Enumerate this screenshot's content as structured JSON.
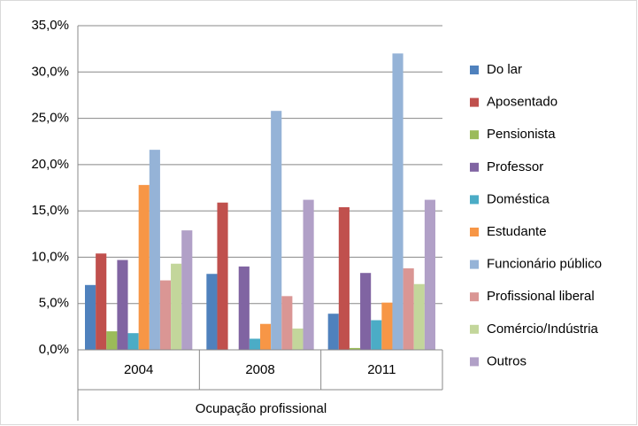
{
  "chart_data": {
    "type": "bar",
    "categories": [
      "2004",
      "2008",
      "2011"
    ],
    "xlabel": "Ocupação profissional",
    "ylim": [
      0,
      35
    ],
    "yticks": [
      {
        "value": 0,
        "label": "0,0%"
      },
      {
        "value": 5,
        "label": "5,0%"
      },
      {
        "value": 10,
        "label": "10,0%"
      },
      {
        "value": 15,
        "label": "15,0%"
      },
      {
        "value": 20,
        "label": "20,0%"
      },
      {
        "value": 25,
        "label": "25,0%"
      },
      {
        "value": 30,
        "label": "30,0%"
      },
      {
        "value": 35,
        "label": "35,0%"
      }
    ],
    "grid": true,
    "legend": "right",
    "series": [
      {
        "name": "Do lar",
        "color": "#4F81BD",
        "values": [
          7.0,
          8.2,
          3.9
        ]
      },
      {
        "name": "Aposentado",
        "color": "#C0504D",
        "values": [
          10.4,
          15.9,
          15.4
        ]
      },
      {
        "name": "Pensionista",
        "color": "#9BBB59",
        "values": [
          2.0,
          0,
          0.2
        ]
      },
      {
        "name": "Professor",
        "color": "#8064A2",
        "values": [
          9.7,
          9.0,
          8.3
        ]
      },
      {
        "name": "Doméstica",
        "color": "#4BACC6",
        "values": [
          1.8,
          1.2,
          3.2
        ]
      },
      {
        "name": "Estudante",
        "color": "#F79646",
        "values": [
          17.8,
          2.8,
          5.1
        ]
      },
      {
        "name": "Funcionário público",
        "color": "#95B3D7",
        "values": [
          21.6,
          25.8,
          32.0
        ]
      },
      {
        "name": "Profissional liberal",
        "color": "#DA9694",
        "values": [
          7.5,
          5.8,
          8.8
        ]
      },
      {
        "name": "Comércio/Indústria",
        "color": "#C3D69B",
        "values": [
          9.3,
          2.3,
          7.1
        ]
      },
      {
        "name": "Outros",
        "color": "#B1A0C7",
        "values": [
          12.9,
          16.2,
          16.2
        ]
      }
    ]
  }
}
